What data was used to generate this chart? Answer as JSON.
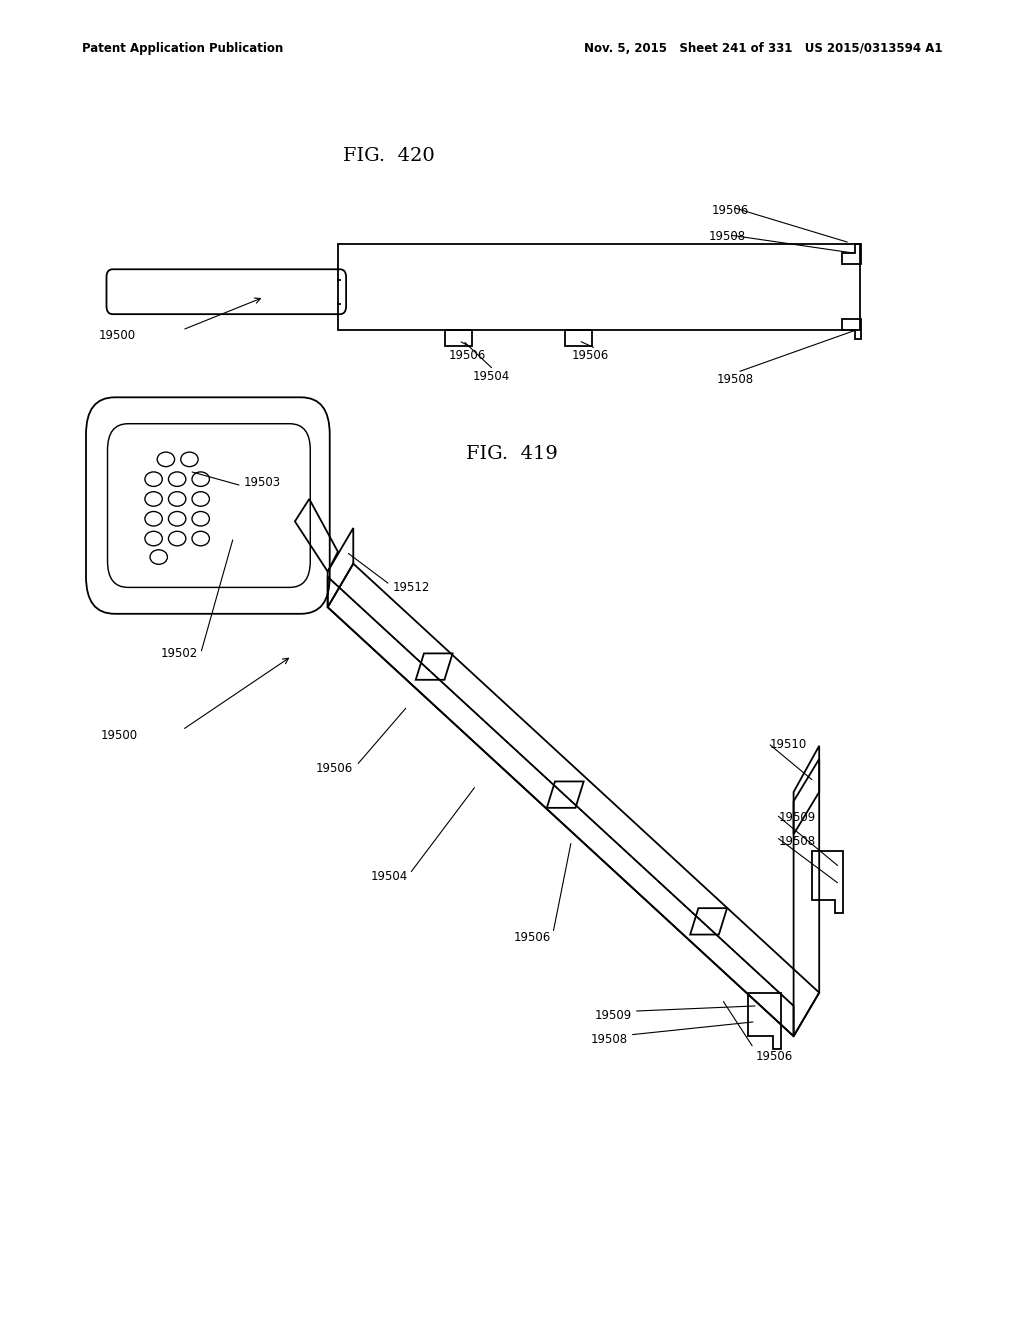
{
  "header_left": "Patent Application Publication",
  "header_right": "Nov. 5, 2015   Sheet 241 of 331   US 2015/0313594 A1",
  "fig419_label": "FIG.  419",
  "fig420_label": "FIG.  420",
  "bg_color": "#ffffff",
  "line_color": "#000000",
  "text_color": "#000000"
}
